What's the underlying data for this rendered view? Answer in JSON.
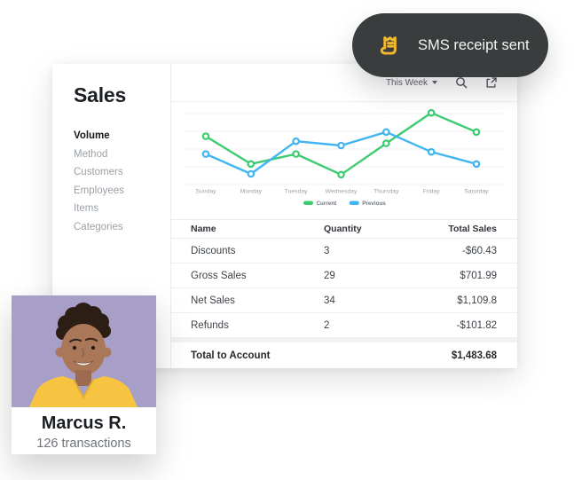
{
  "toast": {
    "label": "SMS receipt sent",
    "bg_color": "#3a3d3e",
    "icon": "receipt-icon",
    "icon_color": "#F0B72F"
  },
  "dashboard": {
    "title": "Sales",
    "nav": [
      {
        "label": "Volume",
        "active": true
      },
      {
        "label": "Method",
        "active": false
      },
      {
        "label": "Customers",
        "active": false
      },
      {
        "label": "Employees",
        "active": false
      },
      {
        "label": "Items",
        "active": false
      },
      {
        "label": "Categories",
        "active": false
      }
    ],
    "toolbar": {
      "period_selector": "This Week",
      "icons": [
        "search-icon",
        "export-icon"
      ]
    },
    "table": {
      "columns": [
        "Name",
        "Quantity",
        "Total Sales"
      ],
      "rows": [
        {
          "name": "Discounts",
          "quantity": "3",
          "total": "-$60.43"
        },
        {
          "name": "Gross Sales",
          "quantity": "29",
          "total": "$701.99"
        },
        {
          "name": "Net Sales",
          "quantity": "34",
          "total": "$1,109.8"
        },
        {
          "name": "Refunds",
          "quantity": "2",
          "total": "-$101.82"
        }
      ],
      "footer": {
        "label": "Total to Account",
        "value": "$1,483.68"
      }
    }
  },
  "chart_data": {
    "type": "line",
    "title": "",
    "x": [
      "Sunday",
      "Monday",
      "Tuesday",
      "Wednesday",
      "Thursday",
      "Friday",
      "Saturday"
    ],
    "series": [
      {
        "name": "Current",
        "color": "#3ECB72",
        "values": [
          68,
          29,
          43,
          14,
          58,
          101,
          74
        ]
      },
      {
        "name": "Previous",
        "color": "#41B5F2",
        "values": [
          43,
          15,
          61,
          55,
          74,
          46,
          29
        ]
      }
    ],
    "ylim": [
      0,
      110
    ],
    "xlabel": "",
    "ylabel": "",
    "grid": true,
    "gridline_values": [
      0,
      25,
      50,
      75,
      100
    ],
    "legend_position": "bottom",
    "note": "relative units; chart shows no y-axis labels"
  },
  "customer_card": {
    "name": "Marcus R.",
    "subtitle": "126 transactions"
  }
}
